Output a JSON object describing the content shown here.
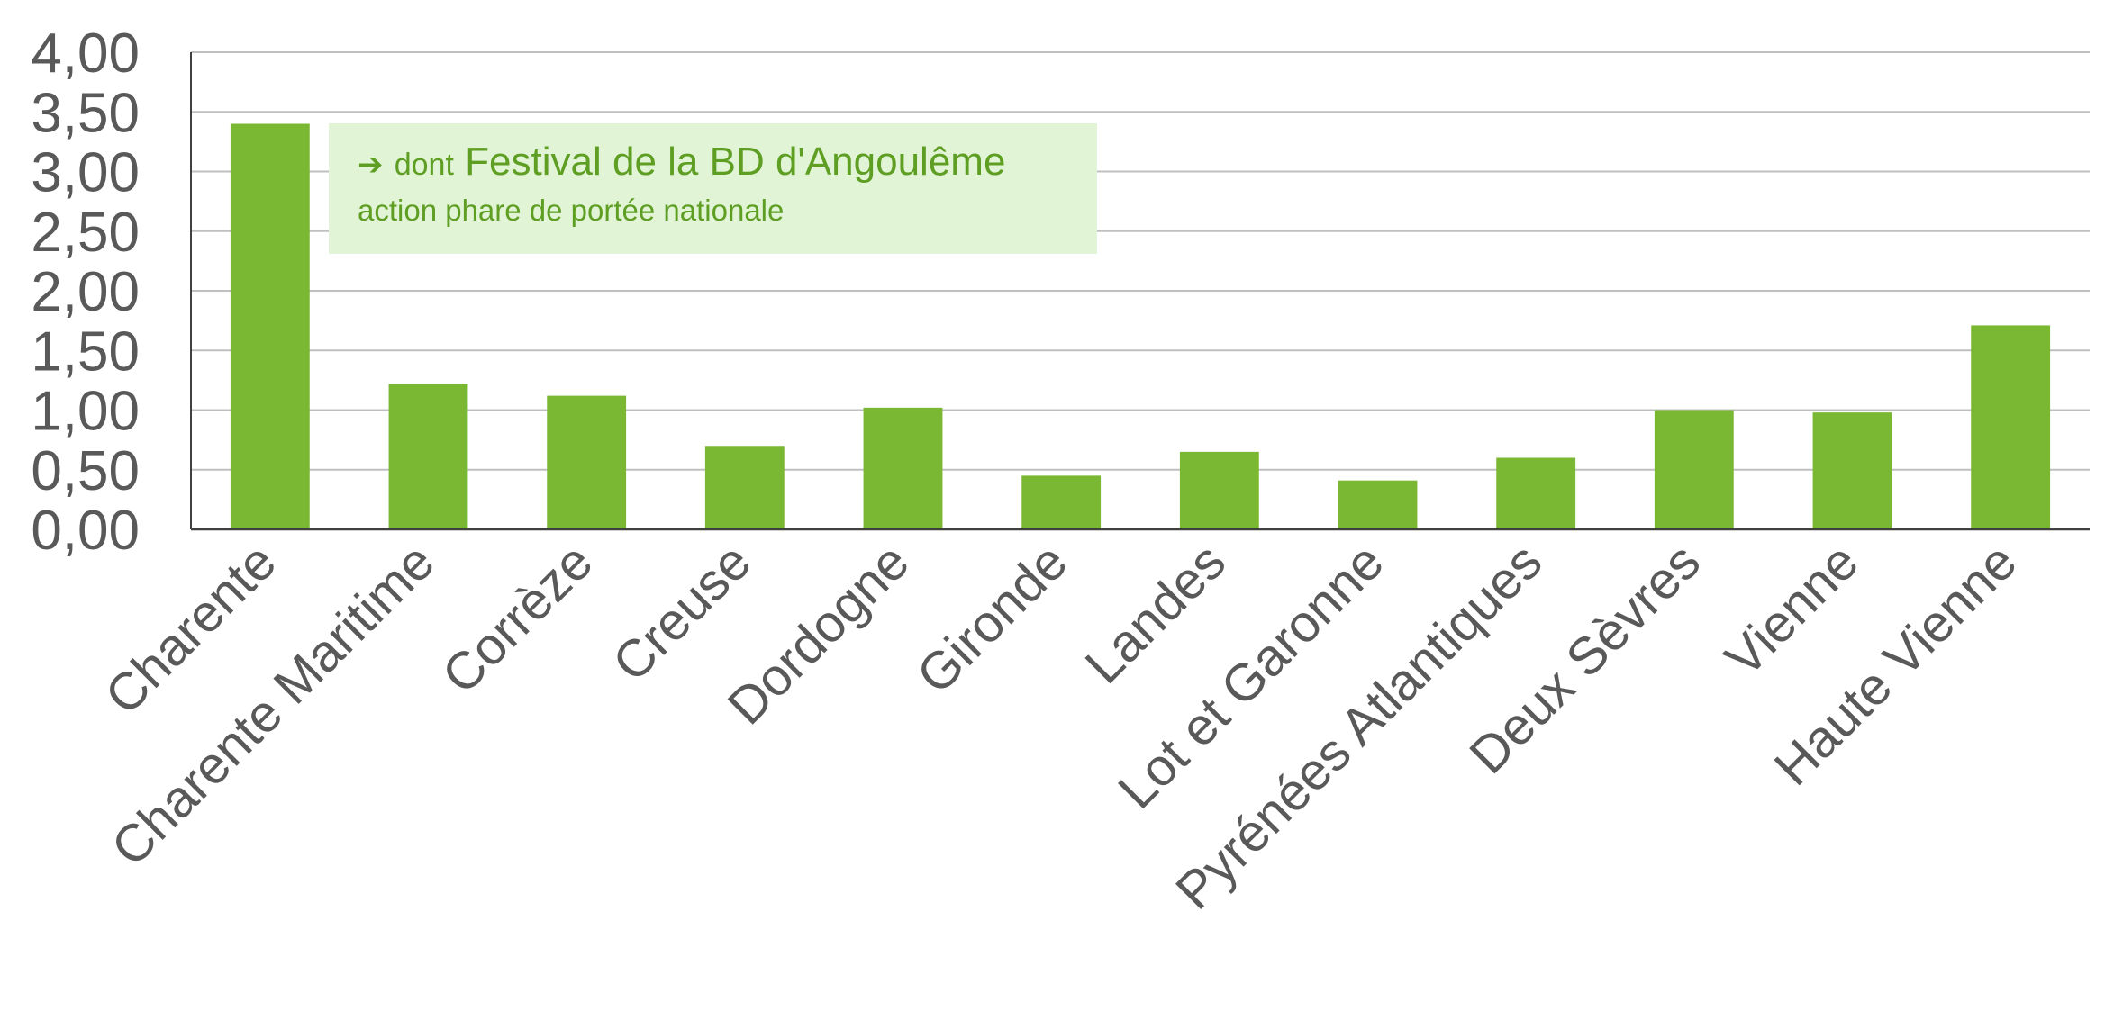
{
  "chart_data": {
    "type": "bar",
    "categories": [
      "Charente",
      "Charente Maritime",
      "Corrèze",
      "Creuse",
      "Dordogne",
      "Gironde",
      "Landes",
      "Lot et Garonne",
      "Pyrénées Atlantiques",
      "Deux Sèvres",
      "Vienne",
      "Haute Vienne"
    ],
    "values": [
      3.4,
      1.22,
      1.12,
      0.7,
      1.02,
      0.45,
      0.65,
      0.41,
      0.6,
      1.0,
      0.98,
      1.71
    ],
    "yticks": [
      "0,00",
      "0,50",
      "1,00",
      "1,50",
      "2,00",
      "2,50",
      "3,00",
      "3,50",
      "4,00"
    ],
    "ylim": [
      0,
      4
    ],
    "title": "",
    "xlabel": "",
    "ylabel": "",
    "grid": true,
    "bar_color": "#7ab733",
    "grid_color": "#bfbfbf",
    "axis_color": "#404040",
    "label_color": "#595959"
  },
  "annotation": {
    "arrow_icon": "right-arrow-icon",
    "prefix": "dont",
    "main": "Festival de la BD d'Angoulême",
    "sub": "action phare de portée nationale",
    "background": "#e2f4d6",
    "text_color": "#5e9e23"
  }
}
